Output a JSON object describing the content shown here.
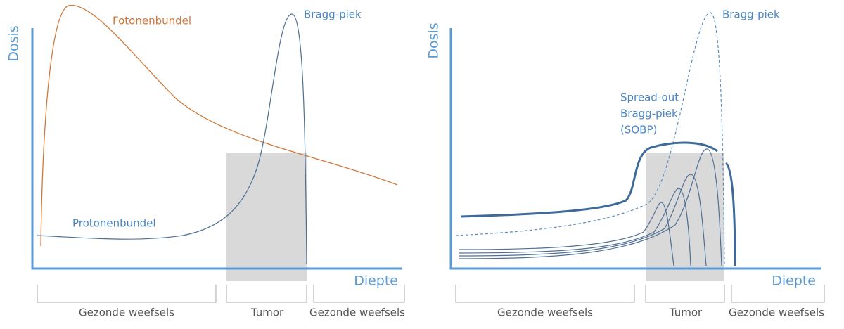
{
  "panels": [
    {
      "y_label": "Dosis",
      "x_label": "Diepte",
      "annotations": [
        "Fotonenbundel",
        "Bragg-piek",
        "Protonenbundel"
      ],
      "regions": [
        "Gezonde weefsels",
        "Tumor",
        "Gezonde weefsels"
      ]
    },
    {
      "y_label": "Dosis",
      "x_label": "Diepte",
      "annotations": [
        "Bragg-piek",
        "Spread-out",
        "Bragg-piek",
        "(SOBP)"
      ],
      "regions": [
        "Gezonde weefsels",
        "Tumor",
        "Gezonde weefsels"
      ]
    }
  ]
}
